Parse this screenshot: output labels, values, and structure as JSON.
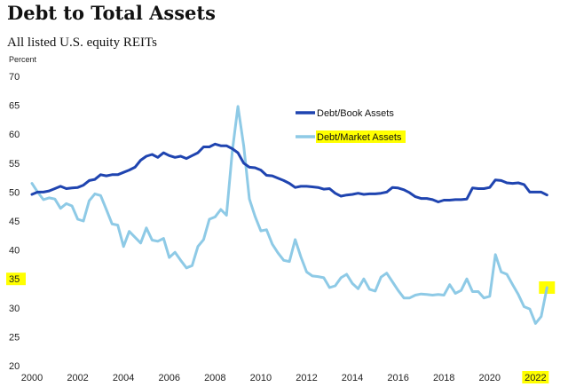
{
  "chart_data": {
    "type": "line",
    "title": "Debt to Total Assets",
    "subtitle": "All listed U.S. equity REITs",
    "ylabel": "Percent",
    "xlabel": "",
    "ylim": [
      20,
      70
    ],
    "xlim": [
      2000,
      2022.8
    ],
    "yticks": [
      20,
      25,
      30,
      35,
      40,
      45,
      50,
      55,
      60,
      65,
      70
    ],
    "xticks": [
      2000,
      2002,
      2004,
      2006,
      2008,
      2010,
      2012,
      2014,
      2016,
      2018,
      2020,
      2022
    ],
    "highlighted_ticks": {
      "y": [
        35
      ],
      "x": [
        2022
      ]
    },
    "highlight_color": "#ffff00",
    "grid": false,
    "legend_position": "top-right",
    "series": [
      {
        "name": "Debt/Book Assets",
        "color": "#1f44b0",
        "x": [
          2000.0,
          2000.25,
          2000.5,
          2000.75,
          2001.0,
          2001.25,
          2001.5,
          2001.75,
          2002.0,
          2002.25,
          2002.5,
          2002.75,
          2003.0,
          2003.25,
          2003.5,
          2003.75,
          2004.0,
          2004.25,
          2004.5,
          2004.75,
          2005.0,
          2005.25,
          2005.5,
          2005.75,
          2006.0,
          2006.25,
          2006.5,
          2006.75,
          2007.0,
          2007.25,
          2007.5,
          2007.75,
          2008.0,
          2008.25,
          2008.5,
          2008.75,
          2009.0,
          2009.25,
          2009.5,
          2009.75,
          2010.0,
          2010.25,
          2010.5,
          2010.75,
          2011.0,
          2011.25,
          2011.5,
          2011.75,
          2012.0,
          2012.25,
          2012.5,
          2012.75,
          2013.0,
          2013.25,
          2013.5,
          2013.75,
          2014.0,
          2014.25,
          2014.5,
          2014.75,
          2015.0,
          2015.25,
          2015.5,
          2015.75,
          2016.0,
          2016.25,
          2016.5,
          2016.75,
          2017.0,
          2017.25,
          2017.5,
          2017.75,
          2018.0,
          2018.25,
          2018.5,
          2018.75,
          2019.0,
          2019.25,
          2019.5,
          2019.75,
          2020.0,
          2020.25,
          2020.5,
          2020.75,
          2021.0,
          2021.25,
          2021.5,
          2021.75,
          2022.0,
          2022.25,
          2022.5
        ],
        "y": [
          49.6,
          50.0,
          50.0,
          50.2,
          50.6,
          51.0,
          50.6,
          50.7,
          50.8,
          51.2,
          52.0,
          52.2,
          53.0,
          52.8,
          53.0,
          53.0,
          53.4,
          53.8,
          54.3,
          55.5,
          56.2,
          56.5,
          56.0,
          56.8,
          56.3,
          56.0,
          56.2,
          55.8,
          56.3,
          56.8,
          57.8,
          57.8,
          58.3,
          58.0,
          58.0,
          57.5,
          56.8,
          55.0,
          54.3,
          54.2,
          53.8,
          52.9,
          52.8,
          52.4,
          52.0,
          51.5,
          50.8,
          51.0,
          51.0,
          50.9,
          50.8,
          50.5,
          50.6,
          49.8,
          49.3,
          49.5,
          49.6,
          49.8,
          49.6,
          49.7,
          49.7,
          49.8,
          50.0,
          50.8,
          50.7,
          50.4,
          49.9,
          49.2,
          48.9,
          48.9,
          48.7,
          48.3,
          48.6,
          48.6,
          48.7,
          48.7,
          48.8,
          50.7,
          50.6,
          50.6,
          50.8,
          52.1,
          52.0,
          51.6,
          51.5,
          51.6,
          51.3,
          50.0,
          50.0,
          50.0,
          49.5
        ]
      },
      {
        "name": "Debt/Market Assets",
        "color": "#8ecae6",
        "x": [
          2000.0,
          2000.25,
          2000.5,
          2000.75,
          2001.0,
          2001.25,
          2001.5,
          2001.75,
          2002.0,
          2002.25,
          2002.5,
          2002.75,
          2003.0,
          2003.25,
          2003.5,
          2003.75,
          2004.0,
          2004.25,
          2004.5,
          2004.75,
          2005.0,
          2005.25,
          2005.5,
          2005.75,
          2006.0,
          2006.25,
          2006.5,
          2006.75,
          2007.0,
          2007.25,
          2007.5,
          2007.75,
          2008.0,
          2008.25,
          2008.5,
          2008.75,
          2009.0,
          2009.25,
          2009.5,
          2009.75,
          2010.0,
          2010.25,
          2010.5,
          2010.75,
          2011.0,
          2011.25,
          2011.5,
          2011.75,
          2012.0,
          2012.25,
          2012.5,
          2012.75,
          2013.0,
          2013.25,
          2013.5,
          2013.75,
          2014.0,
          2014.25,
          2014.5,
          2014.75,
          2015.0,
          2015.25,
          2015.5,
          2015.75,
          2016.0,
          2016.25,
          2016.5,
          2016.75,
          2017.0,
          2017.25,
          2017.5,
          2017.75,
          2018.0,
          2018.25,
          2018.5,
          2018.75,
          2019.0,
          2019.25,
          2019.5,
          2019.75,
          2020.0,
          2020.25,
          2020.5,
          2020.75,
          2021.0,
          2021.25,
          2021.5,
          2021.75,
          2022.0,
          2022.25,
          2022.5
        ],
        "y": [
          51.5,
          50.0,
          48.7,
          49.0,
          48.8,
          47.2,
          48.0,
          47.6,
          45.3,
          45.0,
          48.5,
          49.7,
          49.4,
          47.0,
          44.5,
          44.3,
          40.6,
          43.2,
          42.2,
          41.2,
          43.8,
          41.7,
          41.5,
          42.0,
          38.7,
          39.6,
          38.2,
          36.9,
          37.3,
          40.6,
          41.8,
          45.3,
          45.7,
          47.0,
          46.0,
          57.0,
          64.8,
          58.0,
          48.8,
          45.8,
          43.3,
          43.5,
          41.0,
          39.5,
          38.2,
          38.0,
          41.8,
          38.8,
          36.2,
          35.5,
          35.4,
          35.2,
          33.5,
          33.8,
          35.2,
          35.8,
          34.2,
          33.3,
          35.0,
          33.2,
          32.9,
          35.3,
          36.0,
          34.5,
          33.0,
          31.7,
          31.7,
          32.2,
          32.4,
          32.3,
          32.2,
          32.3,
          32.2,
          34.0,
          32.5,
          33.0,
          35.0,
          32.8,
          32.8,
          31.7,
          32.0,
          39.2,
          36.2,
          35.8,
          34.0,
          32.3,
          30.2,
          29.8,
          27.3,
          28.5,
          33.5
        ]
      }
    ]
  }
}
